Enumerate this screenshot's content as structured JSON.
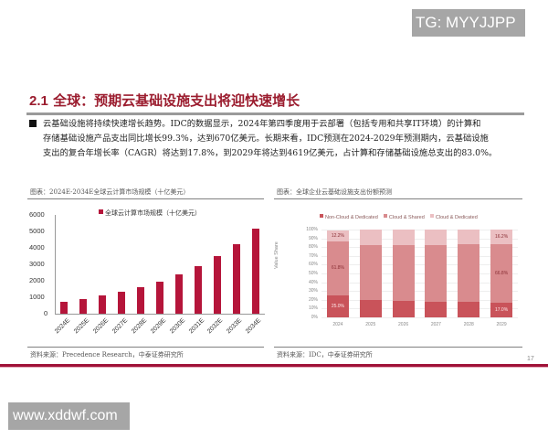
{
  "watermarks": {
    "top": "TG: MYYJJPP",
    "bottom": "www.xddwf.com"
  },
  "slide": {
    "section_number": "2.1",
    "title": "全球：预期云基础设施支出将迎快速增长",
    "paragraph_lines": [
      "云基础设施将持续快速增长趋势。IDC的数据显示，2024年第四季度用于云部署（包括专用和共享IT环境）的计算和",
      "存储基础设施产品支出同比增长99.3%，达到670亿美元。长期来看，IDC预测在2024-2029年预测期内，云基础设施",
      "支出的复合年增长率（CAGR）将达到17.8%，到2029年将达到4619亿美元，占计算和存储基础设施总支出的83.0%。"
    ],
    "page_number": "17"
  },
  "left_chart": {
    "caption": "图表：2024E-2034E全球云计算市场规模（十亿美元）",
    "source": "资料来源：Precedence Research，中泰证券研究所"
  },
  "right_chart": {
    "caption": "图表：全球企业云基础设施支出份额预测",
    "source": "资料来源：IDC，中泰证券研究所"
  },
  "chart_data": [
    {
      "type": "bar",
      "title": "2024E-2034E全球云计算市场规模（十亿美元）",
      "legend": [
        "全球云计算市场规模（十亿美元）"
      ],
      "legend_position": "top",
      "categories": [
        "2024E",
        "2025E",
        "2026E",
        "2027E",
        "2028E",
        "2029E",
        "2030E",
        "2031E",
        "2032E",
        "2033E",
        "2034E"
      ],
      "values": [
        740,
        900,
        1090,
        1330,
        1610,
        1950,
        2370,
        2880,
        3500,
        4230,
        5150
      ],
      "xlabel": "",
      "ylabel": "",
      "ylim": [
        0,
        6000
      ],
      "yticks": [
        0,
        1000,
        2000,
        3000,
        4000,
        5000,
        6000
      ],
      "grid": false,
      "color": "#b5153a"
    },
    {
      "type": "bar",
      "stacked": true,
      "title": "全球企业云基础设施支出份额预测",
      "categories": [
        "2024",
        "2025",
        "2026",
        "2027",
        "2028",
        "2029"
      ],
      "series": [
        {
          "name": "Non-Cloud & Dedicated",
          "color": "#c9535a",
          "values": [
            25.0,
            20,
            19,
            18,
            17.5,
            17.0
          ]
        },
        {
          "name": "Cloud & Shared",
          "color": "#d98b8e",
          "values": [
            61.8,
            62.5,
            63.5,
            64.5,
            65.5,
            66.8
          ]
        },
        {
          "name": "Cloud & Dedicated",
          "color": "#ebbfc2",
          "values": [
            12.2,
            17.5,
            17.5,
            17.5,
            17.0,
            16.2
          ]
        }
      ],
      "data_labels": {
        "2024": [
          "25.0%",
          "61.8%",
          "12.2%"
        ],
        "2029": [
          "17.0%",
          "66.8%",
          "16.2%"
        ]
      },
      "xlabel": "",
      "ylabel": "Value Share",
      "ylim": [
        0,
        100
      ],
      "yticks": [
        "0%",
        "10%",
        "20%",
        "30%",
        "40%",
        "50%",
        "60%",
        "70%",
        "80%",
        "90%",
        "100%"
      ],
      "grid": true,
      "legend_position": "top"
    }
  ]
}
